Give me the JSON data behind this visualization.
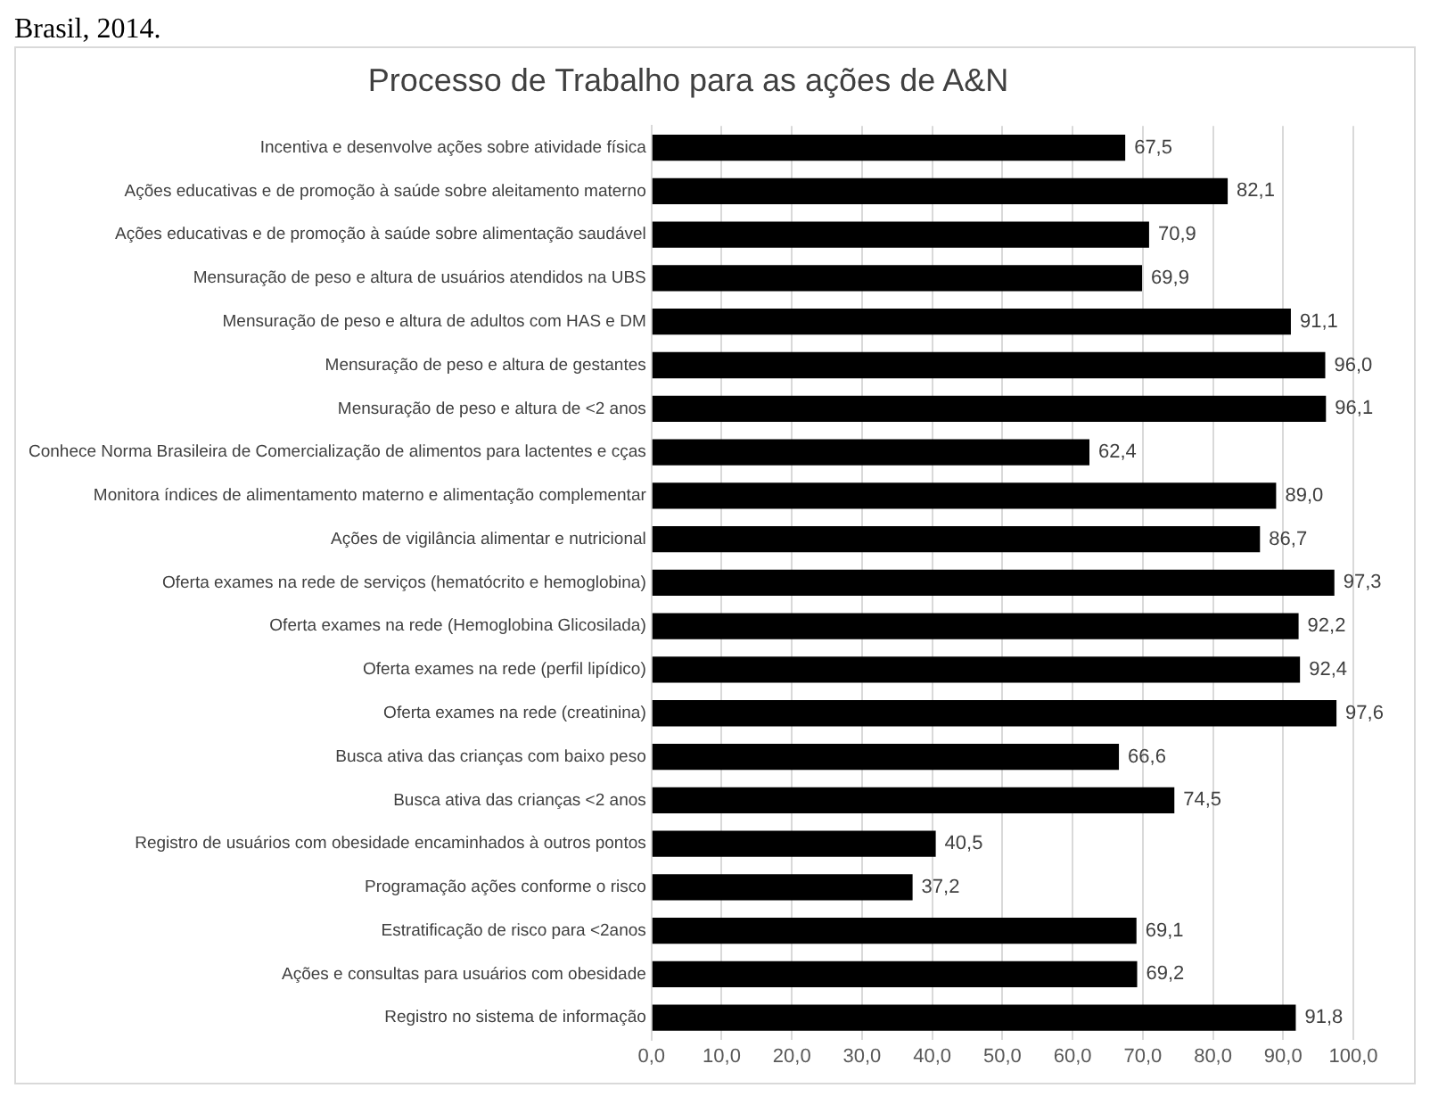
{
  "chart_data": {
    "type": "bar",
    "orientation": "horizontal",
    "title": "Processo de Trabalho para as ações de A&N",
    "annotations": [
      "Brasil, 2014."
    ],
    "categories": [
      "Incentiva e desenvolve ações sobre atividade física",
      "Ações educativas e de promoção à saúde sobre aleitamento materno",
      "Ações educativas e de promoção à saúde sobre alimentação saudável",
      "Mensuração de peso e altura de usuários atendidos na UBS",
      "Mensuração de peso e altura de adultos com HAS e DM",
      "Mensuração de peso e altura de gestantes",
      "Mensuração de peso e altura de <2 anos",
      "Conhece Norma Brasileira de Comercialização de alimentos para lactentes e cças",
      "Monitora índices de alimentamento materno e alimentação complementar",
      "Ações de vigilância alimentar e nutricional",
      "Oferta exames na rede de serviços (hematócrito e hemoglobina)",
      "Oferta exames na rede (Hemoglobina Glicosilada)",
      "Oferta exames na rede (perfil lipídico)",
      "Oferta exames na rede (creatinina)",
      "Busca ativa das crianças com baixo peso",
      "Busca ativa das crianças <2 anos",
      "Registro de usuários com obesidade encaminhados à outros pontos",
      "Programação ações conforme o risco",
      "Estratificação de risco para <2anos",
      "Ações e consultas para usuários com obesidade",
      "Registro no sistema de informação"
    ],
    "values": [
      67.5,
      82.1,
      70.9,
      69.9,
      91.1,
      96.0,
      96.1,
      62.4,
      89.0,
      86.7,
      97.3,
      92.2,
      92.4,
      97.6,
      66.6,
      74.5,
      40.5,
      37.2,
      69.1,
      69.2,
      91.8
    ],
    "value_labels": [
      "67,5",
      "82,1",
      "70,9",
      "69,9",
      "91,1",
      "96,0",
      "96,1",
      "62,4",
      "89,0",
      "86,7",
      "97,3",
      "92,2",
      "92,4",
      "97,6",
      "66,6",
      "74,5",
      "40,5",
      "37,2",
      "69,1",
      "69,2",
      "91,8"
    ],
    "color": "#000000",
    "xlim": [
      0,
      100
    ],
    "xticks": [
      {
        "value": 0,
        "label": "0,0"
      },
      {
        "value": 10,
        "label": "10,0"
      },
      {
        "value": 20,
        "label": "20,0"
      },
      {
        "value": 30,
        "label": "30,0"
      },
      {
        "value": 40,
        "label": "40,0"
      },
      {
        "value": 50,
        "label": "50,0"
      },
      {
        "value": 60,
        "label": "60,0"
      },
      {
        "value": 70,
        "label": "70,0"
      },
      {
        "value": 80,
        "label": "80,0"
      },
      {
        "value": 90,
        "label": "90,0"
      },
      {
        "value": 100,
        "label": "100,0"
      }
    ],
    "grid": "x",
    "legend": false
  }
}
